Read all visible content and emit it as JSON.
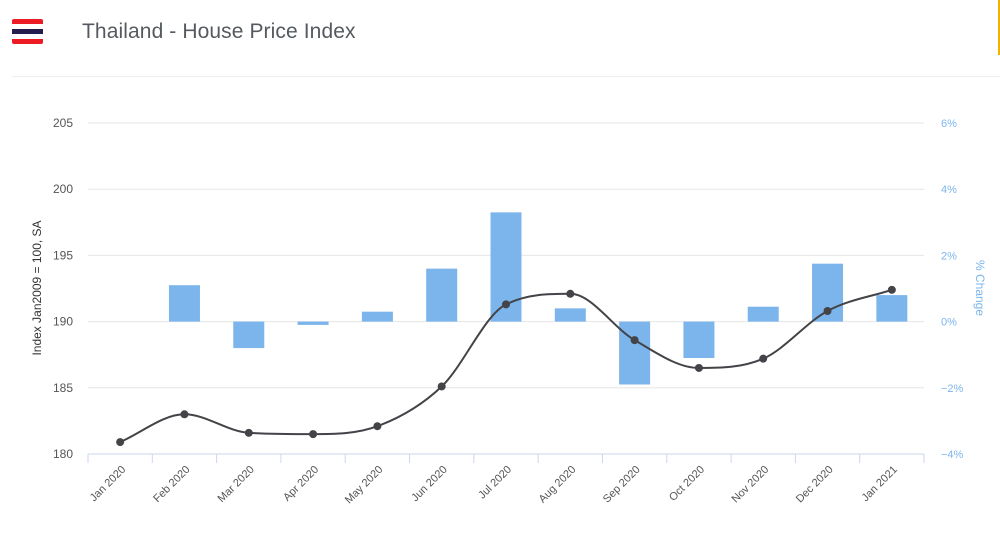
{
  "header": {
    "title": "Thailand - House Price Index",
    "flag_colors": [
      "#ED1C24",
      "#FFFFFF",
      "#241D4F",
      "#FFFFFF",
      "#ED1C24"
    ],
    "accent_color": "#F0B400"
  },
  "chart_data": {
    "type": "bar+line",
    "categories": [
      "Jan 2020",
      "Feb 2020",
      "Mar 2020",
      "Apr 2020",
      "May 2020",
      "Jun 2020",
      "Jul 2020",
      "Aug 2020",
      "Sep 2020",
      "Oct 2020",
      "Nov 2020",
      "Dec 2020",
      "Jan 2021"
    ],
    "series": [
      {
        "type": "bar",
        "axis": "right",
        "color": "#7CB5EC",
        "values": [
          null,
          1.1,
          -0.8,
          -0.1,
          0.3,
          1.6,
          3.3,
          0.4,
          -1.9,
          -1.1,
          0.45,
          1.75,
          0.8
        ]
      },
      {
        "type": "line",
        "axis": "left",
        "color": "#434348",
        "values": [
          180.9,
          183.0,
          181.6,
          181.5,
          182.1,
          185.1,
          191.3,
          192.1,
          188.6,
          186.5,
          187.2,
          190.8,
          192.4
        ]
      }
    ],
    "y_left": {
      "title": "Index Jan2009 = 100, SA",
      "range": [
        180,
        205
      ],
      "ticks": [
        180,
        185,
        190,
        195,
        200,
        205
      ],
      "tick_labels": [
        "180",
        "185",
        "190",
        "195",
        "200",
        "205"
      ]
    },
    "y_right": {
      "title": "% Change",
      "range": [
        -4,
        6
      ],
      "ticks": [
        -4,
        -2,
        0,
        2,
        4,
        6
      ],
      "tick_labels": [
        "−4%",
        "−2%",
        "0%",
        "2%",
        "4%",
        "6%"
      ]
    },
    "grid": true,
    "legend": "none"
  }
}
